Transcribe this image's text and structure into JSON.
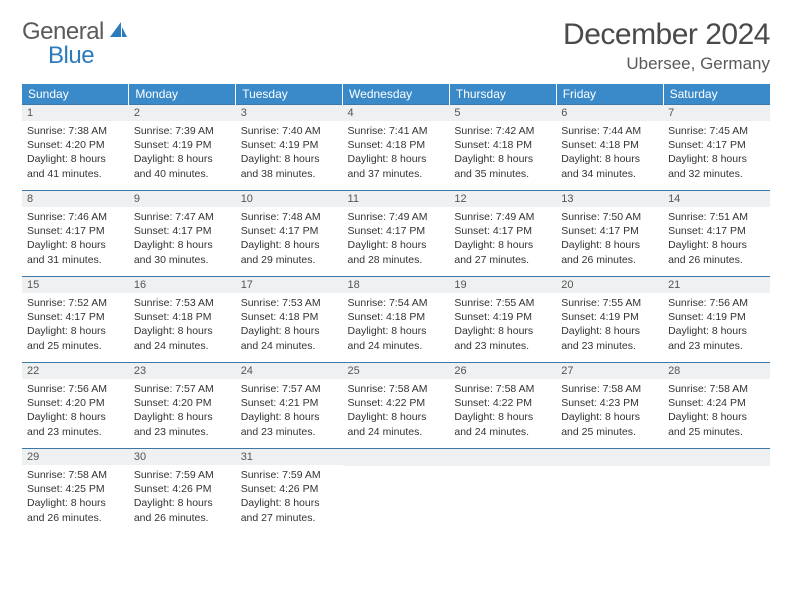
{
  "brand": {
    "part1": "General",
    "part2": "Blue"
  },
  "title": "December 2024",
  "location": "Ubersee, Germany",
  "colors": {
    "header_bg": "#3a8ac9",
    "daynum_bg": "#eef0f1",
    "row_border": "#3a7aaa",
    "text": "#333333",
    "title_text": "#4a4a4a",
    "brand_gray": "#5a5a5a",
    "brand_blue": "#2b7bbf"
  },
  "weekdays": [
    "Sunday",
    "Monday",
    "Tuesday",
    "Wednesday",
    "Thursday",
    "Friday",
    "Saturday"
  ],
  "weeks": [
    [
      {
        "n": "1",
        "sr": "Sunrise: 7:38 AM",
        "ss": "Sunset: 4:20 PM",
        "d1": "Daylight: 8 hours",
        "d2": "and 41 minutes."
      },
      {
        "n": "2",
        "sr": "Sunrise: 7:39 AM",
        "ss": "Sunset: 4:19 PM",
        "d1": "Daylight: 8 hours",
        "d2": "and 40 minutes."
      },
      {
        "n": "3",
        "sr": "Sunrise: 7:40 AM",
        "ss": "Sunset: 4:19 PM",
        "d1": "Daylight: 8 hours",
        "d2": "and 38 minutes."
      },
      {
        "n": "4",
        "sr": "Sunrise: 7:41 AM",
        "ss": "Sunset: 4:18 PM",
        "d1": "Daylight: 8 hours",
        "d2": "and 37 minutes."
      },
      {
        "n": "5",
        "sr": "Sunrise: 7:42 AM",
        "ss": "Sunset: 4:18 PM",
        "d1": "Daylight: 8 hours",
        "d2": "and 35 minutes."
      },
      {
        "n": "6",
        "sr": "Sunrise: 7:44 AM",
        "ss": "Sunset: 4:18 PM",
        "d1": "Daylight: 8 hours",
        "d2": "and 34 minutes."
      },
      {
        "n": "7",
        "sr": "Sunrise: 7:45 AM",
        "ss": "Sunset: 4:17 PM",
        "d1": "Daylight: 8 hours",
        "d2": "and 32 minutes."
      }
    ],
    [
      {
        "n": "8",
        "sr": "Sunrise: 7:46 AM",
        "ss": "Sunset: 4:17 PM",
        "d1": "Daylight: 8 hours",
        "d2": "and 31 minutes."
      },
      {
        "n": "9",
        "sr": "Sunrise: 7:47 AM",
        "ss": "Sunset: 4:17 PM",
        "d1": "Daylight: 8 hours",
        "d2": "and 30 minutes."
      },
      {
        "n": "10",
        "sr": "Sunrise: 7:48 AM",
        "ss": "Sunset: 4:17 PM",
        "d1": "Daylight: 8 hours",
        "d2": "and 29 minutes."
      },
      {
        "n": "11",
        "sr": "Sunrise: 7:49 AM",
        "ss": "Sunset: 4:17 PM",
        "d1": "Daylight: 8 hours",
        "d2": "and 28 minutes."
      },
      {
        "n": "12",
        "sr": "Sunrise: 7:49 AM",
        "ss": "Sunset: 4:17 PM",
        "d1": "Daylight: 8 hours",
        "d2": "and 27 minutes."
      },
      {
        "n": "13",
        "sr": "Sunrise: 7:50 AM",
        "ss": "Sunset: 4:17 PM",
        "d1": "Daylight: 8 hours",
        "d2": "and 26 minutes."
      },
      {
        "n": "14",
        "sr": "Sunrise: 7:51 AM",
        "ss": "Sunset: 4:17 PM",
        "d1": "Daylight: 8 hours",
        "d2": "and 26 minutes."
      }
    ],
    [
      {
        "n": "15",
        "sr": "Sunrise: 7:52 AM",
        "ss": "Sunset: 4:17 PM",
        "d1": "Daylight: 8 hours",
        "d2": "and 25 minutes."
      },
      {
        "n": "16",
        "sr": "Sunrise: 7:53 AM",
        "ss": "Sunset: 4:18 PM",
        "d1": "Daylight: 8 hours",
        "d2": "and 24 minutes."
      },
      {
        "n": "17",
        "sr": "Sunrise: 7:53 AM",
        "ss": "Sunset: 4:18 PM",
        "d1": "Daylight: 8 hours",
        "d2": "and 24 minutes."
      },
      {
        "n": "18",
        "sr": "Sunrise: 7:54 AM",
        "ss": "Sunset: 4:18 PM",
        "d1": "Daylight: 8 hours",
        "d2": "and 24 minutes."
      },
      {
        "n": "19",
        "sr": "Sunrise: 7:55 AM",
        "ss": "Sunset: 4:19 PM",
        "d1": "Daylight: 8 hours",
        "d2": "and 23 minutes."
      },
      {
        "n": "20",
        "sr": "Sunrise: 7:55 AM",
        "ss": "Sunset: 4:19 PM",
        "d1": "Daylight: 8 hours",
        "d2": "and 23 minutes."
      },
      {
        "n": "21",
        "sr": "Sunrise: 7:56 AM",
        "ss": "Sunset: 4:19 PM",
        "d1": "Daylight: 8 hours",
        "d2": "and 23 minutes."
      }
    ],
    [
      {
        "n": "22",
        "sr": "Sunrise: 7:56 AM",
        "ss": "Sunset: 4:20 PM",
        "d1": "Daylight: 8 hours",
        "d2": "and 23 minutes."
      },
      {
        "n": "23",
        "sr": "Sunrise: 7:57 AM",
        "ss": "Sunset: 4:20 PM",
        "d1": "Daylight: 8 hours",
        "d2": "and 23 minutes."
      },
      {
        "n": "24",
        "sr": "Sunrise: 7:57 AM",
        "ss": "Sunset: 4:21 PM",
        "d1": "Daylight: 8 hours",
        "d2": "and 23 minutes."
      },
      {
        "n": "25",
        "sr": "Sunrise: 7:58 AM",
        "ss": "Sunset: 4:22 PM",
        "d1": "Daylight: 8 hours",
        "d2": "and 24 minutes."
      },
      {
        "n": "26",
        "sr": "Sunrise: 7:58 AM",
        "ss": "Sunset: 4:22 PM",
        "d1": "Daylight: 8 hours",
        "d2": "and 24 minutes."
      },
      {
        "n": "27",
        "sr": "Sunrise: 7:58 AM",
        "ss": "Sunset: 4:23 PM",
        "d1": "Daylight: 8 hours",
        "d2": "and 25 minutes."
      },
      {
        "n": "28",
        "sr": "Sunrise: 7:58 AM",
        "ss": "Sunset: 4:24 PM",
        "d1": "Daylight: 8 hours",
        "d2": "and 25 minutes."
      }
    ],
    [
      {
        "n": "29",
        "sr": "Sunrise: 7:58 AM",
        "ss": "Sunset: 4:25 PM",
        "d1": "Daylight: 8 hours",
        "d2": "and 26 minutes."
      },
      {
        "n": "30",
        "sr": "Sunrise: 7:59 AM",
        "ss": "Sunset: 4:26 PM",
        "d1": "Daylight: 8 hours",
        "d2": "and 26 minutes."
      },
      {
        "n": "31",
        "sr": "Sunrise: 7:59 AM",
        "ss": "Sunset: 4:26 PM",
        "d1": "Daylight: 8 hours",
        "d2": "and 27 minutes."
      },
      null,
      null,
      null,
      null
    ]
  ]
}
